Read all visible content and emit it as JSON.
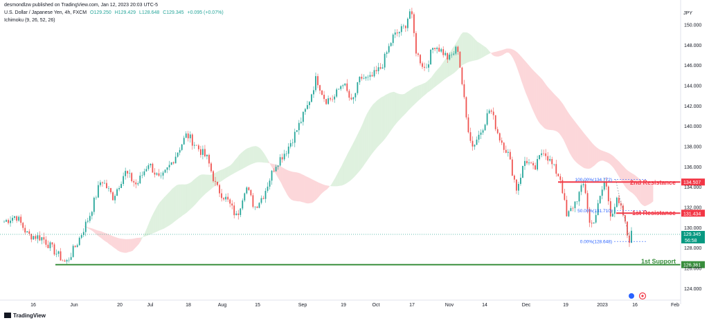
{
  "header": {
    "publisher": "desmondlzw published on TradingView.com, Jan 12, 2023 20:03 UTC-5",
    "symbol": "U.S. Dollar / Japanese Yen, 4h, FXCM",
    "open": "O129.250",
    "high": "H129.429",
    "low": "L128.648",
    "close": "C129.345",
    "change": "+0.095 (+0.07%)",
    "indicator": "Ichimoku (9, 26, 52, 26)"
  },
  "currency": "JPY",
  "footer": {
    "brand": "TradingView"
  },
  "chart_data": {
    "type": "candlestick",
    "y_ticks": [
      "150.000",
      "148.000",
      "146.000",
      "144.000",
      "142.000",
      "140.000",
      "138.000",
      "136.000",
      "134.000",
      "132.000",
      "130.000",
      "128.000",
      "126.000",
      "124.000"
    ],
    "x_ticks": [
      "16",
      "Jun",
      "20",
      "Jul",
      "18",
      "Aug",
      "15",
      "Sep",
      "19",
      "Oct",
      "17",
      "Nov",
      "14",
      "Dec",
      "19",
      "2023",
      "16",
      "Feb"
    ],
    "ylim": [
      123,
      151.5
    ],
    "price_path": [
      {
        "t": 0,
        "p": 130.6
      },
      {
        "t": 4,
        "p": 131.2
      },
      {
        "t": 8,
        "p": 129.3
      },
      {
        "t": 13,
        "p": 129.0
      },
      {
        "t": 18,
        "p": 127.4
      },
      {
        "t": 21,
        "p": 126.5
      },
      {
        "t": 25,
        "p": 128.6
      },
      {
        "t": 29,
        "p": 131.2
      },
      {
        "t": 33,
        "p": 134.8
      },
      {
        "t": 37,
        "p": 133.0
      },
      {
        "t": 41,
        "p": 135.5
      },
      {
        "t": 45,
        "p": 134.2
      },
      {
        "t": 49,
        "p": 136.4
      },
      {
        "t": 53,
        "p": 134.6
      },
      {
        "t": 57,
        "p": 136.5
      },
      {
        "t": 62,
        "p": 139.2
      },
      {
        "t": 66,
        "p": 137.8
      },
      {
        "t": 69,
        "p": 136.8
      },
      {
        "t": 72,
        "p": 134.0
      },
      {
        "t": 76,
        "p": 132.6
      },
      {
        "t": 79,
        "p": 131.0
      },
      {
        "t": 82,
        "p": 134.2
      },
      {
        "t": 85,
        "p": 132.0
      },
      {
        "t": 88,
        "p": 133.2
      },
      {
        "t": 92,
        "p": 136.2
      },
      {
        "t": 96,
        "p": 137.7
      },
      {
        "t": 99,
        "p": 139.4
      },
      {
        "t": 103,
        "p": 142.0
      },
      {
        "t": 106,
        "p": 144.8
      },
      {
        "t": 109,
        "p": 142.6
      },
      {
        "t": 112,
        "p": 142.8
      },
      {
        "t": 115,
        "p": 144.4
      },
      {
        "t": 118,
        "p": 142.2
      },
      {
        "t": 121,
        "p": 144.8
      },
      {
        "t": 124,
        "p": 144.6
      },
      {
        "t": 128,
        "p": 145.8
      },
      {
        "t": 132,
        "p": 148.8
      },
      {
        "t": 136,
        "p": 149.8
      },
      {
        "t": 138,
        "p": 151.6
      },
      {
        "t": 140,
        "p": 147.2
      },
      {
        "t": 143,
        "p": 145.6
      },
      {
        "t": 146,
        "p": 148.1
      },
      {
        "t": 149,
        "p": 147.3
      },
      {
        "t": 151,
        "p": 146.6
      },
      {
        "t": 154,
        "p": 147.8
      },
      {
        "t": 157,
        "p": 140.6
      },
      {
        "t": 159,
        "p": 138.0
      },
      {
        "t": 162,
        "p": 139.6
      },
      {
        "t": 165,
        "p": 141.8
      },
      {
        "t": 168,
        "p": 139.0
      },
      {
        "t": 171,
        "p": 137.4
      },
      {
        "t": 174,
        "p": 133.8
      },
      {
        "t": 177,
        "p": 136.8
      },
      {
        "t": 180,
        "p": 135.6
      },
      {
        "t": 183,
        "p": 137.8
      },
      {
        "t": 186,
        "p": 136.2
      },
      {
        "t": 189,
        "p": 134.8
      },
      {
        "t": 191,
        "p": 131.0
      },
      {
        "t": 194,
        "p": 132.6
      },
      {
        "t": 197,
        "p": 134.4
      },
      {
        "t": 199,
        "p": 130.0
      },
      {
        "t": 201,
        "p": 131.4
      },
      {
        "t": 204,
        "p": 134.8
      },
      {
        "t": 206,
        "p": 131.3
      },
      {
        "t": 208,
        "p": 132.6
      },
      {
        "t": 210,
        "p": 131.5
      },
      {
        "t": 212,
        "p": 128.7
      },
      {
        "t": 213,
        "p": 129.35
      }
    ],
    "fibonacci": {
      "level_100": "100.00%(134.772)",
      "level_50": "50.00%(131.710)",
      "level_0": "0.00%(128.648)"
    },
    "levels": [
      {
        "label": "2nd Resistance",
        "price": 134.507,
        "tag": "134.507",
        "color": "#f23645"
      },
      {
        "label": "1st Resistance",
        "price": 131.434,
        "tag": "131.434",
        "color": "#f23645"
      },
      {
        "label": "1st Support",
        "price": 126.361,
        "tag": "126.361",
        "color": "#388e3c"
      }
    ],
    "current_price": {
      "value": "129.345",
      "countdown": "56:58",
      "price": 129.345,
      "color": "#089981"
    }
  }
}
